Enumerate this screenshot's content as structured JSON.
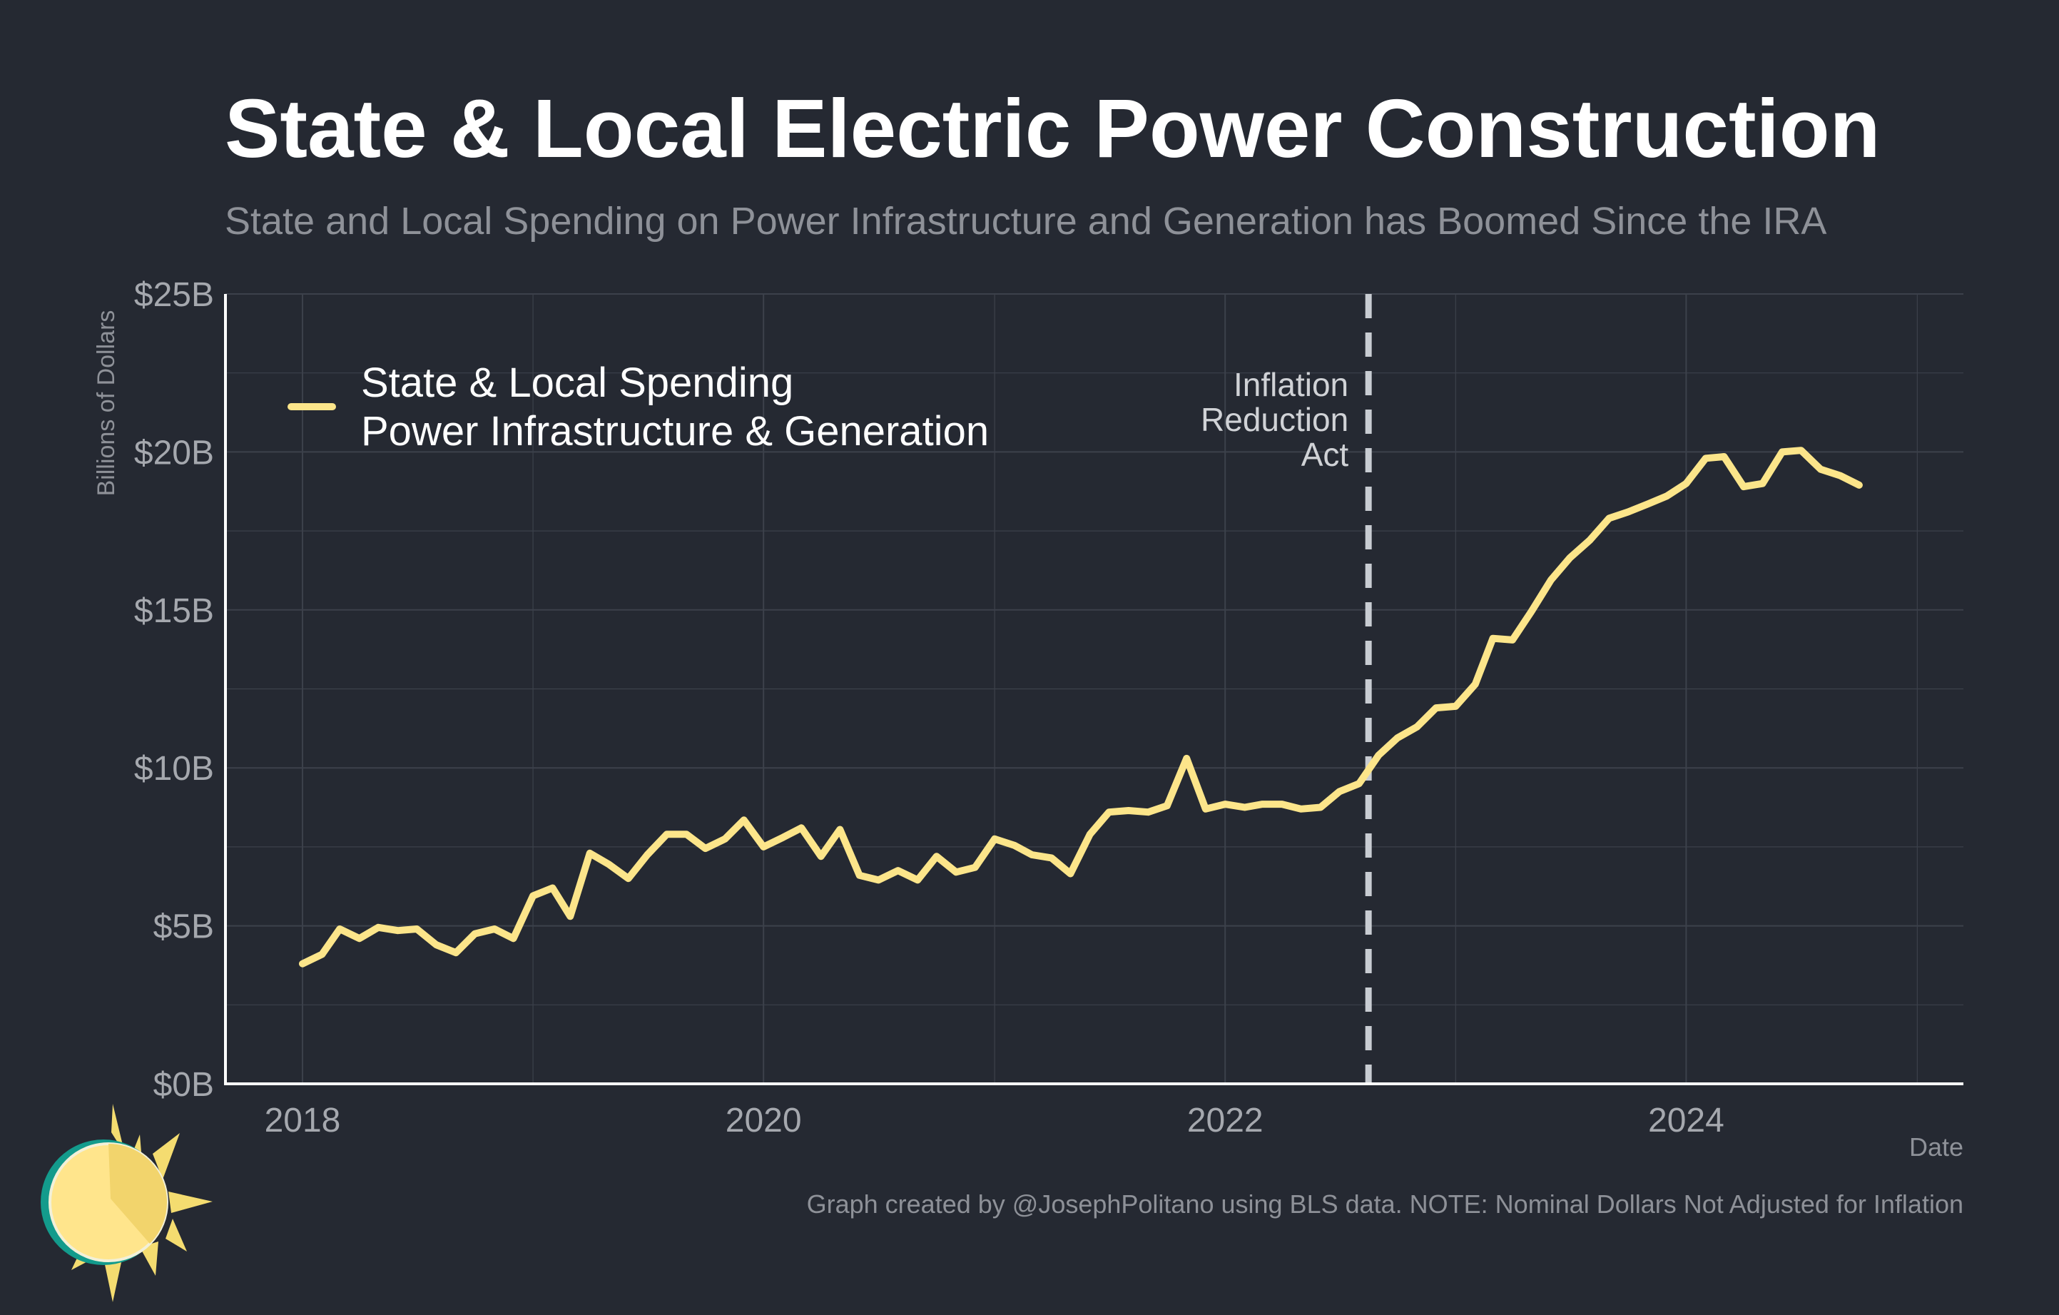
{
  "chart_data": {
    "type": "line",
    "title": "State & Local Electric Power Construction",
    "subtitle": "State and Local Spending on Power Infrastructure and Generation has Boomed Since the IRA",
    "ylabel": "Billions of Dollars",
    "xlabel": "Date",
    "caption": "Graph created by @JosephPolitano using BLS data. NOTE: Nominal Dollars Not Adjusted for Inflation",
    "xlim": [
      "2017-09-01",
      "2025-03-15"
    ],
    "ylim": [
      0,
      25
    ],
    "x_ticks": [
      "2018-01-01",
      "2020-01-01",
      "2022-01-01",
      "2024-01-01"
    ],
    "x_tick_labels": [
      "2018",
      "2020",
      "2022",
      "2024"
    ],
    "y_ticks": [
      0,
      5,
      10,
      15,
      20,
      25
    ],
    "y_tick_labels": [
      "$0B",
      "$5B",
      "$10B",
      "$15B",
      "$20B",
      "$25B"
    ],
    "grid": true,
    "legend_position": "top-left",
    "colors": {
      "background": "#252932",
      "series": "#FCE58A",
      "grid": "#3C414B",
      "axis": "#FFFFFF",
      "tick_text": "#A5A8AE",
      "annotation_line": "#C8CCD2",
      "annotation_text": "#D0D2D6"
    },
    "annotation": {
      "x": "2022-08-16",
      "lines": [
        "Inflation",
        "Reduction",
        "Act"
      ]
    },
    "series": [
      {
        "name_lines": [
          "State & Local Spending",
          "Power Infrastructure & Generation"
        ],
        "points": [
          [
            "2018-01",
            3.8
          ],
          [
            "2018-02",
            4.1
          ],
          [
            "2018-03",
            4.9
          ],
          [
            "2018-04",
            4.6
          ],
          [
            "2018-05",
            4.95
          ],
          [
            "2018-06",
            4.85
          ],
          [
            "2018-07",
            4.9
          ],
          [
            "2018-08",
            4.4
          ],
          [
            "2018-09",
            4.15
          ],
          [
            "2018-10",
            4.75
          ],
          [
            "2018-11",
            4.9
          ],
          [
            "2018-12",
            4.6
          ],
          [
            "2019-01",
            5.95
          ],
          [
            "2019-02",
            6.2
          ],
          [
            "2019-03",
            5.3
          ],
          [
            "2019-04",
            7.3
          ],
          [
            "2019-05",
            6.95
          ],
          [
            "2019-06",
            6.5
          ],
          [
            "2019-07",
            7.25
          ],
          [
            "2019-08",
            7.9
          ],
          [
            "2019-09",
            7.9
          ],
          [
            "2019-10",
            7.45
          ],
          [
            "2019-11",
            7.75
          ],
          [
            "2019-12",
            8.35
          ],
          [
            "2020-01",
            7.5
          ],
          [
            "2020-02",
            7.8
          ],
          [
            "2020-03",
            8.1
          ],
          [
            "2020-04",
            7.2
          ],
          [
            "2020-05",
            8.05
          ],
          [
            "2020-06",
            6.6
          ],
          [
            "2020-07",
            6.45
          ],
          [
            "2020-08",
            6.75
          ],
          [
            "2020-09",
            6.45
          ],
          [
            "2020-10",
            7.2
          ],
          [
            "2020-11",
            6.7
          ],
          [
            "2020-12",
            6.85
          ],
          [
            "2021-01",
            7.75
          ],
          [
            "2021-02",
            7.55
          ],
          [
            "2021-03",
            7.25
          ],
          [
            "2021-04",
            7.15
          ],
          [
            "2021-05",
            6.65
          ],
          [
            "2021-06",
            7.9
          ],
          [
            "2021-07",
            8.6
          ],
          [
            "2021-08",
            8.65
          ],
          [
            "2021-09",
            8.6
          ],
          [
            "2021-10",
            8.8
          ],
          [
            "2021-11",
            10.3
          ],
          [
            "2021-12",
            8.7
          ],
          [
            "2022-01",
            8.85
          ],
          [
            "2022-02",
            8.75
          ],
          [
            "2022-03",
            8.85
          ],
          [
            "2022-04",
            8.85
          ],
          [
            "2022-05",
            8.7
          ],
          [
            "2022-06",
            8.75
          ],
          [
            "2022-07",
            9.25
          ],
          [
            "2022-08",
            9.5
          ],
          [
            "2022-09",
            10.4
          ],
          [
            "2022-10",
            10.95
          ],
          [
            "2022-11",
            11.3
          ],
          [
            "2022-12",
            11.9
          ],
          [
            "2023-01",
            11.95
          ],
          [
            "2023-02",
            12.65
          ],
          [
            "2023-03",
            14.1
          ],
          [
            "2023-04",
            14.05
          ],
          [
            "2023-05",
            14.95
          ],
          [
            "2023-06",
            15.95
          ],
          [
            "2023-07",
            16.65
          ],
          [
            "2023-08",
            17.2
          ],
          [
            "2023-09",
            17.9
          ],
          [
            "2023-10",
            18.1
          ],
          [
            "2023-11",
            18.35
          ],
          [
            "2023-12",
            18.6
          ],
          [
            "2024-01",
            19.0
          ],
          [
            "2024-02",
            19.8
          ],
          [
            "2024-03",
            19.85
          ],
          [
            "2024-04",
            18.9
          ],
          [
            "2024-05",
            19.0
          ],
          [
            "2024-06",
            20.0
          ],
          [
            "2024-07",
            20.05
          ],
          [
            "2024-08",
            19.45
          ],
          [
            "2024-09",
            19.25
          ],
          [
            "2024-10",
            18.95
          ]
        ]
      }
    ]
  }
}
